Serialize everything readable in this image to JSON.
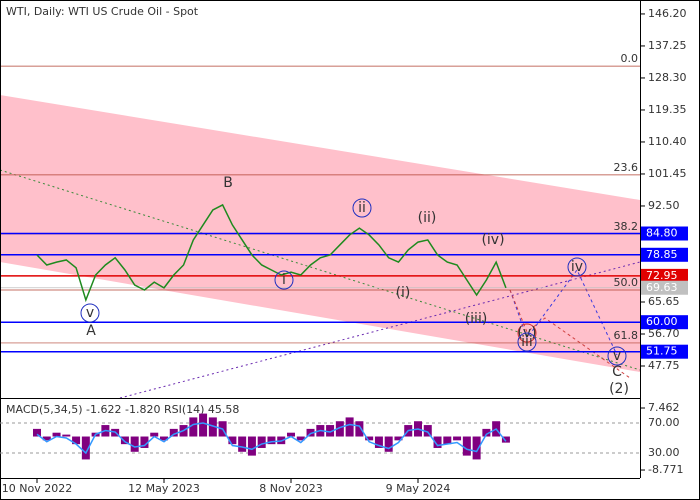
{
  "chart_data": [
    {
      "type": "line",
      "title": "WTI, Daily:  WTI US Crude Oil - Spot",
      "categories": [
        "10 Nov 2022",
        null,
        null,
        null,
        null,
        null,
        null,
        null,
        null,
        null,
        null,
        null,
        null,
        "12 May 2023",
        null,
        null,
        null,
        null,
        null,
        null,
        null,
        null,
        null,
        null,
        null,
        null,
        "8 Nov 2023",
        null,
        null,
        null,
        null,
        null,
        null,
        null,
        null,
        null,
        null,
        null,
        null,
        "9 May 2024",
        null,
        null,
        null,
        null,
        null,
        null,
        null,
        null,
        null
      ],
      "values": [
        78.8,
        76.0,
        76.8,
        77.4,
        75.2,
        66.2,
        73.2,
        76.0,
        78.0,
        74.6,
        70.4,
        69.0,
        71.2,
        69.6,
        73.2,
        76.0,
        83.0,
        87.2,
        91.4,
        92.8,
        87.2,
        83.0,
        78.8,
        76.0,
        74.6,
        73.2,
        74.0,
        73.2,
        76.0,
        78.0,
        78.8,
        81.6,
        84.4,
        86.3,
        84.4,
        81.6,
        78.0,
        76.8,
        80.2,
        82.4,
        83.0,
        78.8,
        76.8,
        76.0,
        71.8,
        67.6,
        71.8,
        76.8,
        69.6
      ],
      "color": "#1e8a1e",
      "ylim": [
        38.8,
        150.1
      ],
      "yticks": [
        {
          "value": 146.2,
          "label": "146.20"
        },
        {
          "value": 137.25,
          "label": "137.25"
        },
        {
          "value": 128.3,
          "label": "128.30"
        },
        {
          "value": 119.35,
          "label": "119.35"
        },
        {
          "value": 110.4,
          "label": "110.40"
        },
        {
          "value": 101.45,
          "label": "101.45"
        },
        {
          "value": 92.5,
          "label": "92.50"
        },
        {
          "value": 65.65,
          "label": "65.65"
        },
        {
          "value": 56.7,
          "label": "56.70"
        },
        {
          "value": 47.75,
          "label": "47.75"
        }
      ],
      "levels": [
        {
          "value": 84.8,
          "label": "84.80",
          "color": "#0000ff"
        },
        {
          "value": 78.85,
          "label": "78.85",
          "color": "#0000ff"
        },
        {
          "value": 72.95,
          "label": "72.95",
          "color": "#e00000"
        },
        {
          "value": 69.63,
          "label": "69.63",
          "color": "#c0c0c0"
        },
        {
          "value": 60,
          "label": "60.00",
          "color": "#0000ff"
        },
        {
          "value": 51.75,
          "label": "51.75",
          "color": "#0000ff"
        }
      ],
      "fib_levels": [
        {
          "price": 131.6,
          "label": "0.0"
        },
        {
          "price": 101.2,
          "label": "23.6"
        },
        {
          "price": 84.7,
          "label": "38.2"
        },
        {
          "price": 69.0,
          "label": "50.0"
        },
        {
          "price": 54.2,
          "label": "61.8"
        }
      ],
      "annotations": [
        "v",
        "A",
        "B",
        "i",
        "ii",
        "(i)",
        "(ii)",
        "(iv)",
        "(iii)",
        "(v)",
        "iii",
        "iv",
        "v",
        "C",
        "(2)"
      ]
    },
    {
      "type": "bar",
      "title": "MACD(5,34,5) -1.622 -1.820 RSI(14) 45.58",
      "series": [
        {
          "color": "#800080",
          "values": [
            2,
            -1,
            1,
            0.5,
            -2,
            -6,
            1,
            3,
            2,
            -2,
            -4,
            -3,
            1,
            -1,
            2,
            3,
            5,
            6,
            5,
            4,
            -2,
            -4,
            -5,
            -3,
            -2,
            -2,
            1,
            -1,
            2,
            3,
            3,
            4,
            5,
            4,
            -1,
            -3,
            -4,
            -1,
            3,
            4,
            3,
            -3,
            -2,
            -1,
            -5,
            -6,
            2,
            4,
            -1.6
          ]
        },
        {
          "color": "#3399ff",
          "axis": "y2",
          "values": [
            55,
            45,
            52,
            50,
            42,
            30,
            55,
            60,
            58,
            45,
            38,
            40,
            52,
            45,
            55,
            60,
            68,
            70,
            66,
            62,
            40,
            38,
            35,
            42,
            45,
            46,
            52,
            44,
            56,
            60,
            58,
            64,
            68,
            66,
            45,
            40,
            36,
            44,
            60,
            62,
            58,
            40,
            42,
            44,
            35,
            32,
            55,
            62,
            45.58
          ]
        }
      ],
      "ylim": [
        -10.86,
        9.56
      ],
      "yticks": [
        7.462,
        -8.771
      ],
      "y2lim": [
        -3.3,
        100.7
      ],
      "y2ticks": [
        {
          "value": 70,
          "label": "70.00"
        },
        {
          "value": 30,
          "label": "30.00"
        }
      ]
    }
  ]
}
